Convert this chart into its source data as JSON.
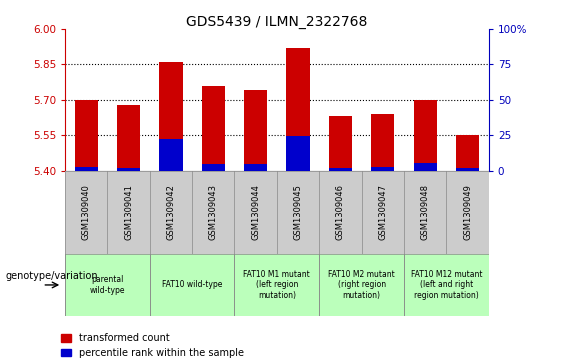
{
  "title": "GDS5439 / ILMN_2322768",
  "samples": [
    "GSM1309040",
    "GSM1309041",
    "GSM1309042",
    "GSM1309043",
    "GSM1309044",
    "GSM1309045",
    "GSM1309046",
    "GSM1309047",
    "GSM1309048",
    "GSM1309049"
  ],
  "red_values": [
    5.7,
    5.68,
    5.86,
    5.76,
    5.74,
    5.92,
    5.63,
    5.64,
    5.7,
    5.55
  ],
  "blue_values": [
    5.415,
    5.413,
    5.535,
    5.428,
    5.428,
    5.548,
    5.413,
    5.415,
    5.433,
    5.413
  ],
  "ymin": 5.4,
  "ymax": 6.0,
  "yticks": [
    5.4,
    5.55,
    5.7,
    5.85,
    6.0
  ],
  "y2min": 0,
  "y2max": 100,
  "y2ticks": [
    0,
    25,
    50,
    75,
    100
  ],
  "bar_width": 0.55,
  "red_color": "#CC0000",
  "blue_color": "#0000CC",
  "tick_color_left": "#CC0000",
  "tick_color_right": "#0000BB",
  "group_spans": [
    [
      0,
      1,
      "parental\nwild-type"
    ],
    [
      2,
      3,
      "FAT10 wild-type"
    ],
    [
      4,
      5,
      "FAT10 M1 mutant\n(left region\nmutation)"
    ],
    [
      6,
      7,
      "FAT10 M2 mutant\n(right region\nmutation)"
    ],
    [
      8,
      9,
      "FAT10 M12 mutant\n(left and right\nregion mutation)"
    ]
  ],
  "genotype_label": "genotype/variation",
  "legend_red": "transformed count",
  "legend_blue": "percentile rank within the sample",
  "cell_color": "#CCCCCC",
  "geno_color": "#BBFFBB",
  "grid_dotted_vals": [
    5.55,
    5.7,
    5.85
  ]
}
